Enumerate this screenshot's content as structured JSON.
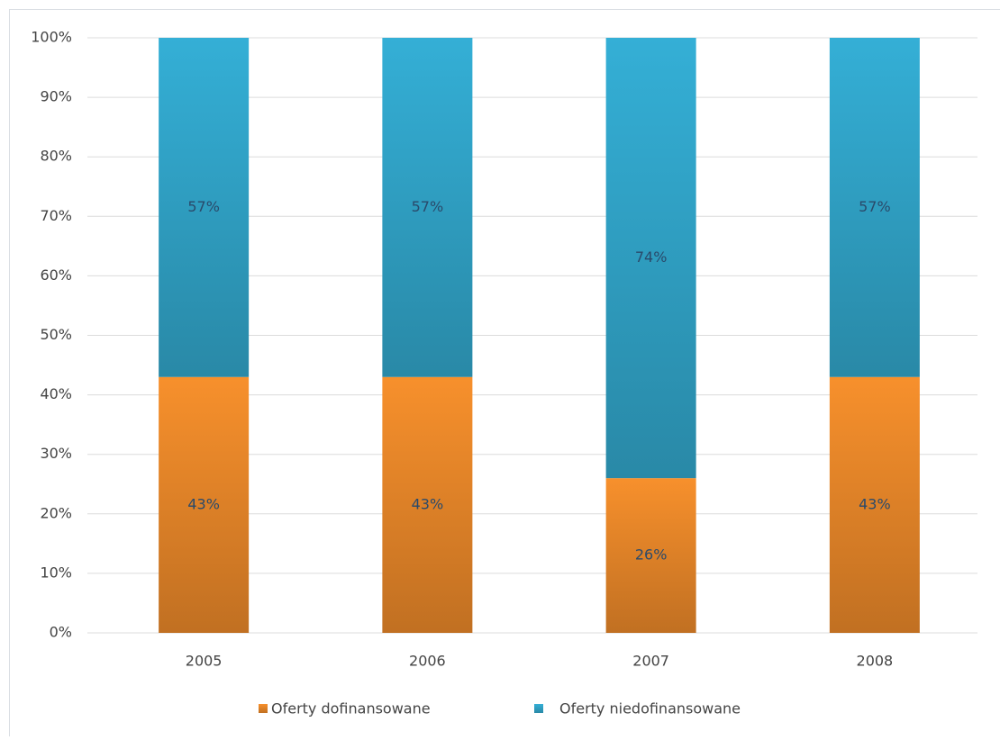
{
  "chart_data": {
    "type": "stacked_bar",
    "categories": [
      "2005",
      "2006",
      "2007",
      "2008"
    ],
    "series": [
      {
        "name": "Oferty dofinansowane",
        "color": "#f7902c",
        "values": [
          43,
          43,
          26,
          43
        ],
        "value_labels": [
          "43%",
          "43%",
          "26%",
          "43%"
        ]
      },
      {
        "name": "Oferty niedofinansowane",
        "color": "#34afd6",
        "values": [
          57,
          57,
          74,
          57
        ],
        "value_labels": [
          "57%",
          "57%",
          "74%",
          "57%"
        ]
      }
    ],
    "ylim": [
      0,
      100
    ],
    "yticks": [
      {
        "value": 0,
        "label": "0%"
      },
      {
        "value": 10,
        "label": "10%"
      },
      {
        "value": 20,
        "label": "20%"
      },
      {
        "value": 30,
        "label": "30%"
      },
      {
        "value": 40,
        "label": "40%"
      },
      {
        "value": 50,
        "label": "50%"
      },
      {
        "value": 60,
        "label": "60%"
      },
      {
        "value": 70,
        "label": "70%"
      },
      {
        "value": 80,
        "label": "80%"
      },
      {
        "value": 90,
        "label": "90%"
      },
      {
        "value": 100,
        "label": "100%"
      }
    ],
    "grid": true,
    "legend": "bottom"
  }
}
